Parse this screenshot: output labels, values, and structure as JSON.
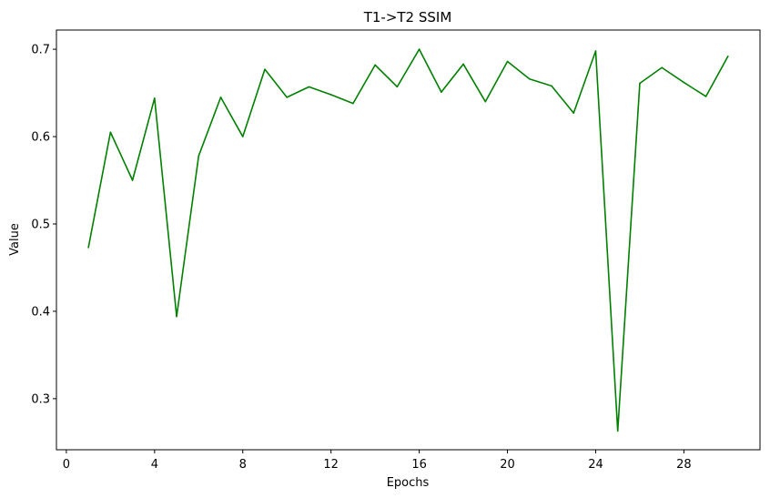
{
  "chart_data": {
    "type": "line",
    "title": "T1->T2 SSIM",
    "xlabel": "Epochs",
    "ylabel": "Value",
    "xlim": [
      -0.45,
      31.45
    ],
    "ylim": [
      0.2415,
      0.722
    ],
    "xticks": [
      0,
      4,
      8,
      12,
      16,
      20,
      24,
      28
    ],
    "yticks": [
      0.3,
      0.4,
      0.5,
      0.6,
      0.7
    ],
    "ytick_labels": [
      "0.3",
      "0.4",
      "0.5",
      "0.6",
      "0.7"
    ],
    "grid": false,
    "series": [
      {
        "color": "#008000",
        "x": [
          1,
          2,
          3,
          4,
          5,
          6,
          7,
          8,
          9,
          10,
          11,
          12,
          13,
          14,
          15,
          16,
          17,
          18,
          19,
          20,
          21,
          22,
          23,
          24,
          25,
          26,
          27,
          28,
          29,
          30
        ],
        "values": [
          0.473,
          0.605,
          0.55,
          0.644,
          0.394,
          0.578,
          0.645,
          0.6,
          0.677,
          0.645,
          0.657,
          0.648,
          0.638,
          0.682,
          0.657,
          0.7,
          0.651,
          0.683,
          0.64,
          0.686,
          0.666,
          0.658,
          0.627,
          0.698,
          0.263,
          0.661,
          0.679,
          0.662,
          0.646,
          0.692
        ]
      }
    ]
  }
}
